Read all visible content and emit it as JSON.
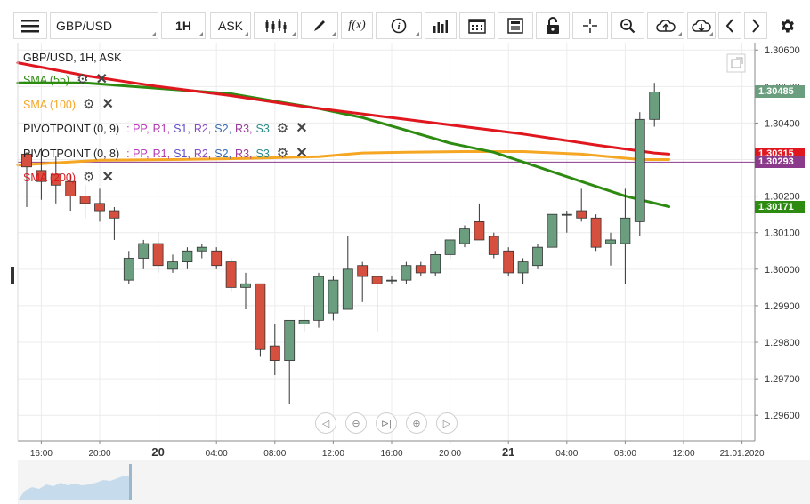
{
  "toolbar": {
    "symbol": "GBP/USD",
    "interval": "1H",
    "price_type": "ASK",
    "function_label": "f(x)"
  },
  "legend": {
    "title": "GBP/USD, 1H, ASK",
    "sma55": "SMA (55)",
    "sma100": "SMA (100)",
    "pivot1_name": "PIVOTPOINT (0, 9)",
    "pivot1_levels": [
      ": PP,",
      "R1,",
      "S1,",
      "R2,",
      "S2,",
      "R3,",
      "S3"
    ],
    "pivot2_name": "PIVOTPOINT (0, 8)",
    "pivot2_levels": [
      ": PP,",
      "R1,",
      "S1,",
      "R2,",
      "S2,",
      "R3,",
      "S3"
    ],
    "sma200": "SMA (200)"
  },
  "colors": {
    "up": "#6a9e7f",
    "down": "#d6503f",
    "sma55": "#2e8b12",
    "sma100": "#f5a623",
    "sma200": "#e0171f",
    "pivot_line": "#8b3a8b",
    "pp": "#c03cc0",
    "r1": "#b03ab0",
    "s1": "#5b4fc9",
    "r2": "#8a4bc0",
    "s2": "#3a6bb5",
    "r3": "#9a3a9a",
    "s3": "#2a8a8a"
  },
  "chart_data": {
    "type": "candlestick",
    "symbol": "GBP/USD",
    "interval": "1H",
    "y_ticks": [
      1.296,
      1.297,
      1.298,
      1.299,
      1.3,
      1.301,
      1.302,
      1.303,
      1.304,
      1.305,
      1.306
    ],
    "y_tick_labels": [
      "1.29600",
      "1.29700",
      "1.29800",
      "1.29900",
      "1.30000",
      "1.30100",
      "1.30200",
      "1.30300",
      "1.30400",
      "1.30500",
      "1.30600"
    ],
    "ylim": [
      1.2953,
      1.3062
    ],
    "x_tick_labels": [
      {
        "i": 1,
        "label": "16:00",
        "bold": false
      },
      {
        "i": 5,
        "label": "20:00",
        "bold": false
      },
      {
        "i": 9,
        "label": "20",
        "bold": true
      },
      {
        "i": 13,
        "label": "04:00",
        "bold": false
      },
      {
        "i": 17,
        "label": "08:00",
        "bold": false
      },
      {
        "i": 21,
        "label": "12:00",
        "bold": false
      },
      {
        "i": 25,
        "label": "16:00",
        "bold": false
      },
      {
        "i": 29,
        "label": "20:00",
        "bold": false
      },
      {
        "i": 33,
        "label": "21",
        "bold": true
      },
      {
        "i": 37,
        "label": "04:00",
        "bold": false
      },
      {
        "i": 41,
        "label": "08:00",
        "bold": false
      },
      {
        "i": 45,
        "label": "12:00",
        "bold": false
      },
      {
        "i": 49,
        "label": "21.01.2020",
        "bold": false
      }
    ],
    "candles": [
      {
        "o": 1.30315,
        "h": 1.3032,
        "l": 1.3017,
        "c": 1.3028
      },
      {
        "o": 1.3027,
        "h": 1.3033,
        "l": 1.3019,
        "c": 1.3024
      },
      {
        "o": 1.3026,
        "h": 1.3031,
        "l": 1.3018,
        "c": 1.3023
      },
      {
        "o": 1.3024,
        "h": 1.3026,
        "l": 1.3016,
        "c": 1.302
      },
      {
        "o": 1.302,
        "h": 1.3023,
        "l": 1.3014,
        "c": 1.3018
      },
      {
        "o": 1.3018,
        "h": 1.3022,
        "l": 1.3013,
        "c": 1.3016
      },
      {
        "o": 1.3016,
        "h": 1.3017,
        "l": 1.3008,
        "c": 1.3014
      },
      {
        "o": 1.2997,
        "h": 1.3005,
        "l": 1.2996,
        "c": 1.3003
      },
      {
        "o": 1.3003,
        "h": 1.3008,
        "l": 1.3,
        "c": 1.3007
      },
      {
        "o": 1.3007,
        "h": 1.301,
        "l": 1.2999,
        "c": 1.3001
      },
      {
        "o": 1.3,
        "h": 1.3004,
        "l": 1.2999,
        "c": 1.3002
      },
      {
        "o": 1.3002,
        "h": 1.3006,
        "l": 1.3,
        "c": 1.3005
      },
      {
        "o": 1.3005,
        "h": 1.3007,
        "l": 1.3003,
        "c": 1.3006
      },
      {
        "o": 1.3005,
        "h": 1.3006,
        "l": 1.3,
        "c": 1.3001
      },
      {
        "o": 1.3002,
        "h": 1.3003,
        "l": 1.2994,
        "c": 1.2995
      },
      {
        "o": 1.2995,
        "h": 1.2999,
        "l": 1.2989,
        "c": 1.2996
      },
      {
        "o": 1.2996,
        "h": 1.2996,
        "l": 1.2976,
        "c": 1.2978
      },
      {
        "o": 1.2979,
        "h": 1.2985,
        "l": 1.2971,
        "c": 1.2975
      },
      {
        "o": 1.2975,
        "h": 1.2986,
        "l": 1.2963,
        "c": 1.2986
      },
      {
        "o": 1.2985,
        "h": 1.299,
        "l": 1.2983,
        "c": 1.2986
      },
      {
        "o": 1.2986,
        "h": 1.2999,
        "l": 1.2984,
        "c": 1.2998
      },
      {
        "o": 1.2988,
        "h": 1.2998,
        "l": 1.2986,
        "c": 1.2997
      },
      {
        "o": 1.2989,
        "h": 1.3009,
        "l": 1.2989,
        "c": 1.3
      },
      {
        "o": 1.3001,
        "h": 1.3002,
        "l": 1.2991,
        "c": 1.2998
      },
      {
        "o": 1.2998,
        "h": 1.2998,
        "l": 1.2983,
        "c": 1.2996
      },
      {
        "o": 1.2997,
        "h": 1.2998,
        "l": 1.2996,
        "c": 1.2997
      },
      {
        "o": 1.2997,
        "h": 1.3002,
        "l": 1.2996,
        "c": 1.3001
      },
      {
        "o": 1.3001,
        "h": 1.3002,
        "l": 1.2998,
        "c": 1.2999
      },
      {
        "o": 1.2999,
        "h": 1.3005,
        "l": 1.2998,
        "c": 1.3004
      },
      {
        "o": 1.3004,
        "h": 1.3008,
        "l": 1.3003,
        "c": 1.3008
      },
      {
        "o": 1.3007,
        "h": 1.3012,
        "l": 1.3006,
        "c": 1.3011
      },
      {
        "o": 1.3013,
        "h": 1.3018,
        "l": 1.3008,
        "c": 1.3008
      },
      {
        "o": 1.3009,
        "h": 1.301,
        "l": 1.3003,
        "c": 1.3004
      },
      {
        "o": 1.3005,
        "h": 1.3006,
        "l": 1.2998,
        "c": 1.2999
      },
      {
        "o": 1.2999,
        "h": 1.3003,
        "l": 1.2996,
        "c": 1.3002
      },
      {
        "o": 1.3001,
        "h": 1.3007,
        "l": 1.3,
        "c": 1.3006
      },
      {
        "o": 1.3006,
        "h": 1.3015,
        "l": 1.3006,
        "c": 1.3015
      },
      {
        "o": 1.3015,
        "h": 1.3016,
        "l": 1.301,
        "c": 1.3015
      },
      {
        "o": 1.3016,
        "h": 1.3022,
        "l": 1.3013,
        "c": 1.3014
      },
      {
        "o": 1.3014,
        "h": 1.3015,
        "l": 1.3005,
        "c": 1.3006
      },
      {
        "o": 1.3007,
        "h": 1.301,
        "l": 1.3001,
        "c": 1.3008
      },
      {
        "o": 1.3007,
        "h": 1.3022,
        "l": 1.2996,
        "c": 1.3014
      },
      {
        "o": 1.3013,
        "h": 1.3043,
        "l": 1.3009,
        "c": 1.3041
      },
      {
        "o": 1.3041,
        "h": 1.3051,
        "l": 1.3039,
        "c": 1.30485
      }
    ],
    "sma55": [
      [
        -1,
        1.3051
      ],
      [
        4,
        1.3051
      ],
      [
        9,
        1.30495
      ],
      [
        14,
        1.3048
      ],
      [
        17,
        1.3046
      ],
      [
        20,
        1.3044
      ],
      [
        23,
        1.30415
      ],
      [
        26,
        1.3038
      ],
      [
        29,
        1.30345
      ],
      [
        32,
        1.3032
      ],
      [
        35,
        1.3028
      ],
      [
        38,
        1.3024
      ],
      [
        41,
        1.302
      ],
      [
        44,
        1.30171
      ]
    ],
    "sma100": [
      [
        -1,
        1.30285
      ],
      [
        5,
        1.30298
      ],
      [
        10,
        1.303
      ],
      [
        15,
        1.30303
      ],
      [
        20,
        1.30308
      ],
      [
        23,
        1.30318
      ],
      [
        26,
        1.3032
      ],
      [
        30,
        1.30322
      ],
      [
        34,
        1.30322
      ],
      [
        38,
        1.30315
      ],
      [
        42,
        1.303
      ],
      [
        44,
        1.303
      ]
    ],
    "sma200": [
      [
        -1,
        1.30565
      ],
      [
        4,
        1.3053
      ],
      [
        9,
        1.305
      ],
      [
        14,
        1.30475
      ],
      [
        19,
        1.30445
      ],
      [
        24,
        1.3042
      ],
      [
        29,
        1.30395
      ],
      [
        34,
        1.3037
      ],
      [
        39,
        1.3034
      ],
      [
        43,
        1.30318
      ],
      [
        44,
        1.30315
      ]
    ],
    "pivot_level": 1.30293,
    "current_price_line": 1.30485,
    "price_tags": [
      {
        "label": "1.30485",
        "value": 1.30485,
        "color": "#6a9e7f"
      },
      {
        "label": "1.30315",
        "value": 1.30315,
        "color": "#e0171f"
      },
      {
        "label": "1.30293",
        "value": 1.30293,
        "color": "#8b3a8b"
      },
      {
        "label": "1.30171",
        "value": 1.30171,
        "color": "#2e8b12"
      }
    ],
    "grid": true
  }
}
